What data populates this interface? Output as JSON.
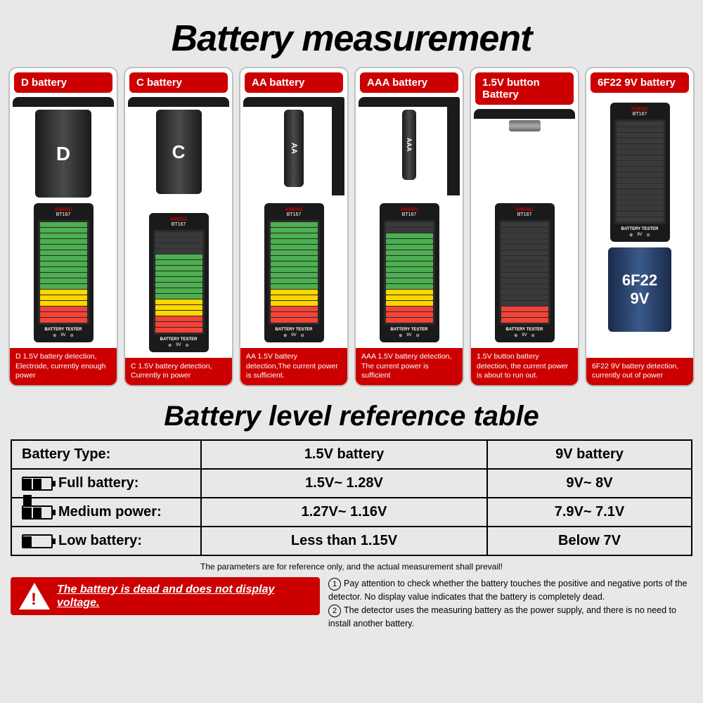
{
  "title": "Battery measurement",
  "subtitle": "Battery level reference table",
  "cards": [
    {
      "head": "D battery",
      "battLabel": "D",
      "foot": "D 1.5V battery detection, Electrode, currently enough power",
      "bars": [
        1,
        1,
        1,
        1,
        1,
        1,
        1,
        1,
        1,
        1,
        1,
        1,
        1,
        1,
        1,
        1,
        1,
        1
      ]
    },
    {
      "head": "C battery",
      "battLabel": "C",
      "foot": "C 1.5V battery detection, Currently in power",
      "bars": [
        0,
        0,
        0,
        0,
        1,
        1,
        1,
        1,
        1,
        1,
        1,
        1,
        1,
        1,
        1,
        1,
        1,
        1
      ]
    },
    {
      "head": "AA battery",
      "battLabel": "AA",
      "foot": "AA 1.5V battery detection,The current power is sufficient.",
      "bars": [
        1,
        1,
        1,
        1,
        1,
        1,
        1,
        1,
        1,
        1,
        1,
        1,
        1,
        1,
        1,
        1,
        1,
        1
      ]
    },
    {
      "head": "AAA battery",
      "battLabel": "AAA",
      "foot": "AAA 1.5V battery detection, The current power is sufficient",
      "bars": [
        0,
        0,
        1,
        1,
        1,
        1,
        1,
        1,
        1,
        1,
        1,
        1,
        1,
        1,
        1,
        1,
        1,
        1
      ]
    },
    {
      "head": "1.5V button Battery",
      "battLabel": "",
      "foot": "1.5V button battery detection, the current power is about to run out.",
      "bars": [
        0,
        0,
        0,
        0,
        0,
        0,
        0,
        0,
        0,
        0,
        0,
        0,
        0,
        0,
        0,
        1,
        1,
        1
      ]
    },
    {
      "head": "6F22 9V battery",
      "battLabel": "6F22",
      "battSub": "9V",
      "foot": "6F22 9V battery detection, currently out of power",
      "bars": [
        0,
        0,
        0,
        0,
        0,
        0,
        0,
        0,
        0,
        0,
        0,
        0,
        0,
        0,
        0,
        0,
        0,
        0
      ]
    }
  ],
  "tester": {
    "brand": "ANENG",
    "model": "BT167",
    "label": "BATTERY TESTER",
    "nv": "9V",
    "nvsub": "BATTERY"
  },
  "table": {
    "head": [
      "Battery Type:",
      "1.5V battery",
      "9V battery"
    ],
    "rows": [
      {
        "label": "Full battery:",
        "c1": "1.5V~ 1.28V",
        "c2": "9V~ 8V",
        "segs": 3
      },
      {
        "label": "Medium power:",
        "c1": "1.27V~ 1.16V",
        "c2": "7.9V~ 7.1V",
        "segs": 2
      },
      {
        "label": "Low battery:",
        "c1": "Less than 1.15V",
        "c2": "Below 7V",
        "segs": 1
      }
    ]
  },
  "disclaimer": "The parameters are for reference only, and the actual measurement shall prevail!",
  "warning": "The battery is dead and does not display voltage.",
  "notes": [
    "Pay attention to check whether the battery touches the positive and negative ports of the detector. No display value indicates that the battery is completely dead.",
    "The detector uses the measuring battery as the power supply, and there is no need to install another battery."
  ],
  "colors": {
    "red": "#cc0000",
    "bg": "#e8e8e8"
  }
}
